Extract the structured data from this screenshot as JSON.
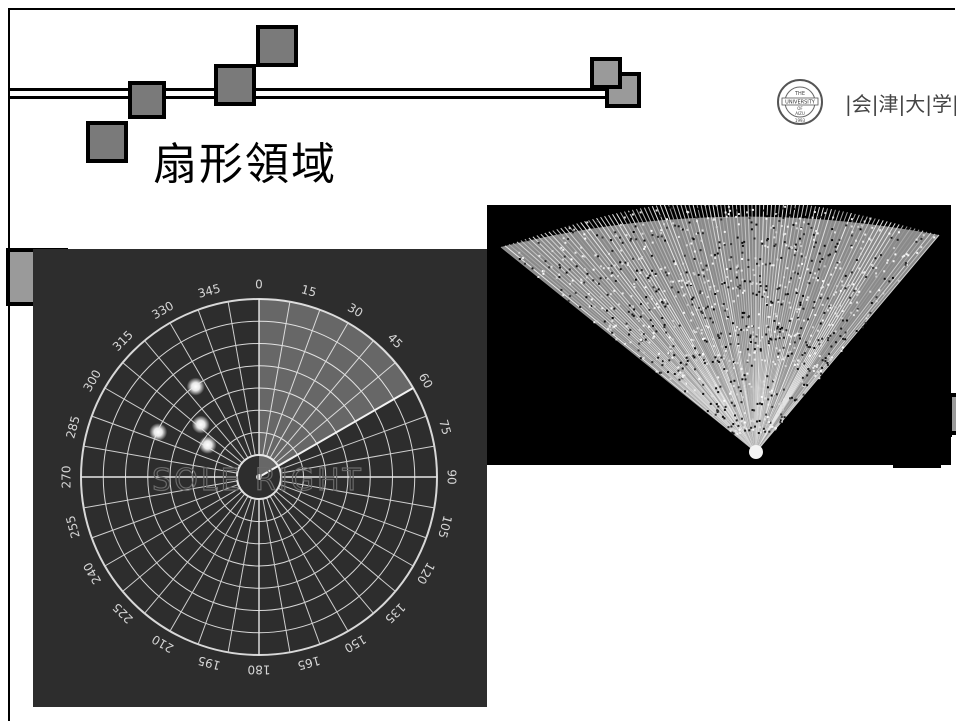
{
  "slide": {
    "title": "扇形領域"
  },
  "logo": {
    "seal_text": [
      "THE",
      "UNIVERSITY",
      "OF",
      "AIZU",
      "1993"
    ],
    "name": "|会|津|大|学|"
  },
  "radar": {
    "angle_labels": [
      "0",
      "15",
      "30",
      "45",
      "60",
      "75",
      "90",
      "105",
      "120",
      "135",
      "150",
      "165",
      "180",
      "195",
      "210",
      "225",
      "240",
      "255",
      "270",
      "285",
      "300",
      "315",
      "330",
      "345"
    ],
    "watermark": "SOLE RIGHT",
    "sweep_from_deg": 0,
    "sweep_to_deg": 60,
    "targets_deg_radius": [
      [
        325,
        0.62
      ],
      [
        294,
        0.62
      ],
      [
        312,
        0.44
      ],
      [
        302,
        0.34
      ]
    ]
  },
  "colors": {
    "accent_dark": "#7a7a7a",
    "accent_light": "#9a9a9a",
    "radar_bg": "#2d2d2d"
  }
}
